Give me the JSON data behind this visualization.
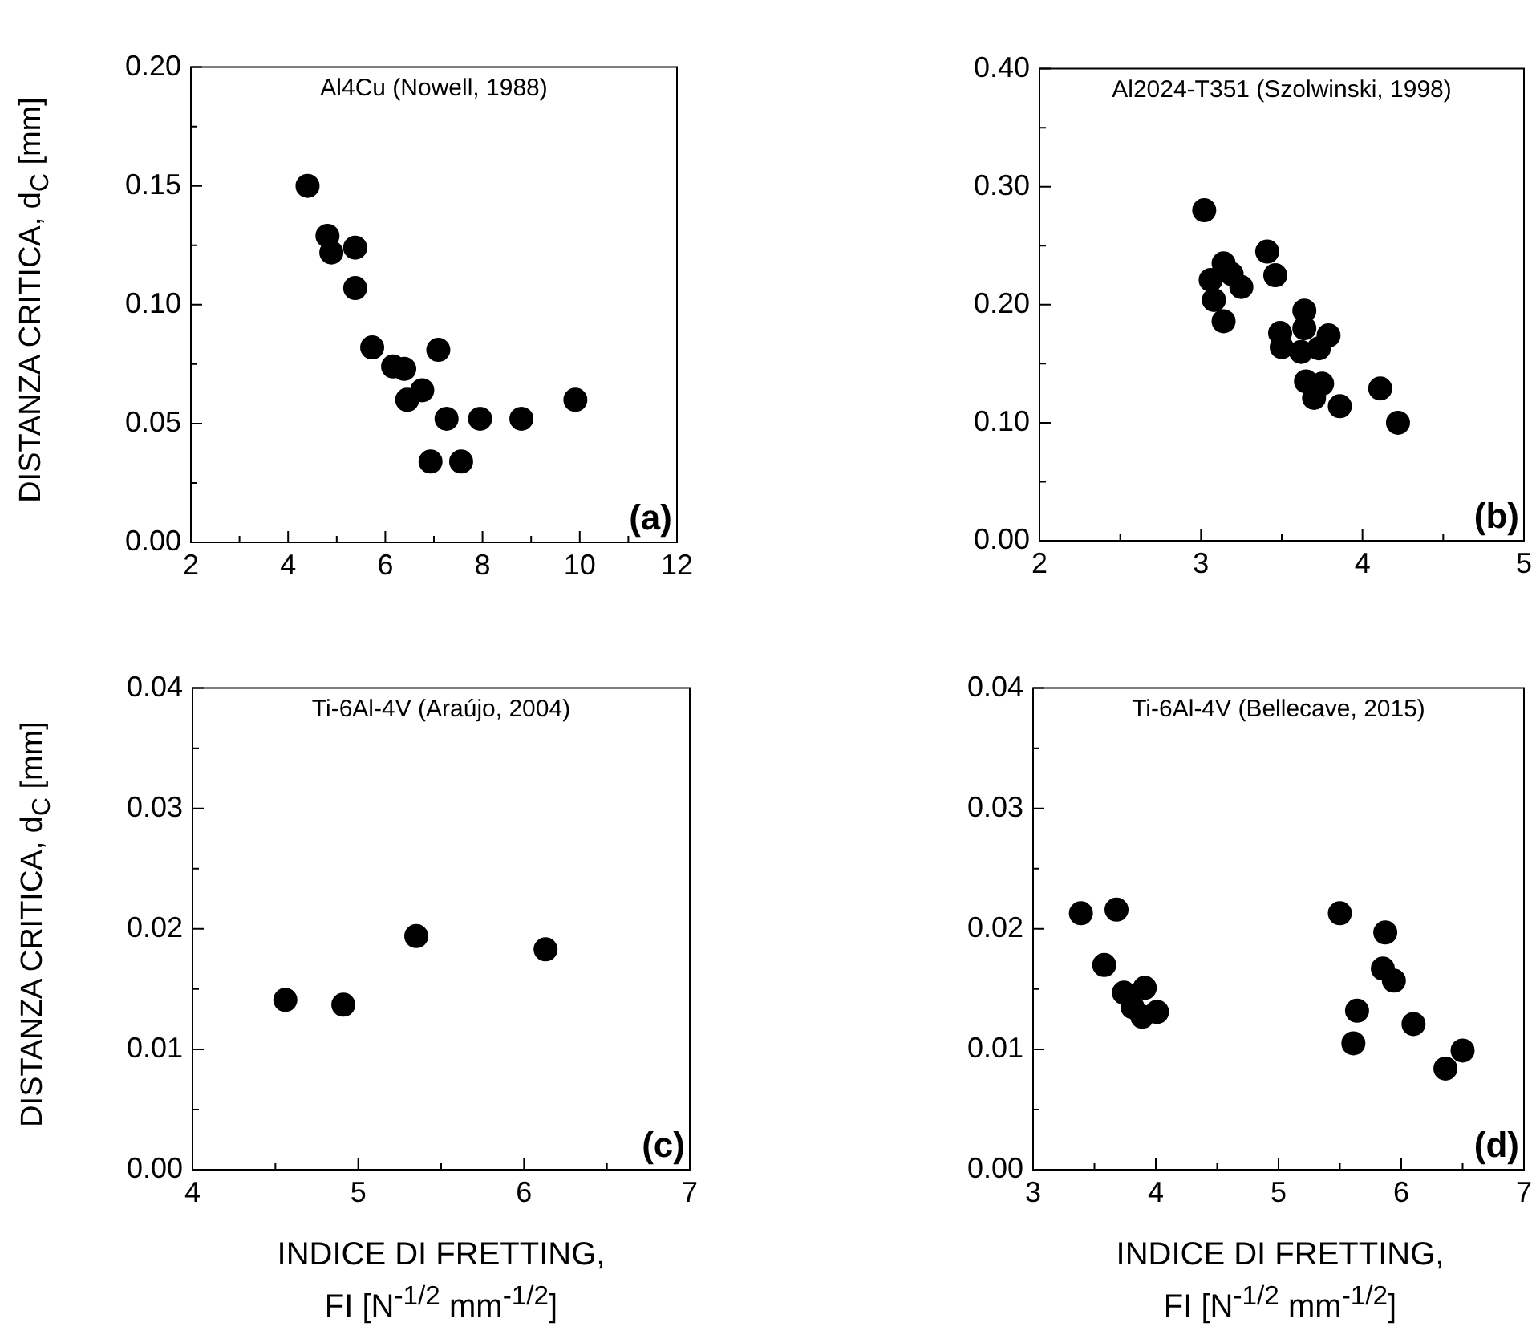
{
  "chart_data": [
    {
      "type": "scatter",
      "title": "Al4Cu (Nowell, 1988)",
      "ylabel": "DISTANZA CRITICA, d$_{C}$ [mm]",
      "annotations": [
        "(a)"
      ],
      "marker": "circle",
      "x": [
        4.4,
        4.81,
        4.89,
        5.38,
        5.38,
        5.73,
        5.94,
        5.99,
        6.16,
        6.39,
        6.45,
        6.76,
        7.09,
        6.93,
        7.26,
        7.56,
        7.95,
        8.8,
        9.91
      ],
      "values": [
        0.15,
        0.129,
        0.122,
        0.124,
        0.107,
        0.082,
        null,
        null,
        0.074,
        0.073,
        0.06,
        0.064,
        0.081,
        0.034,
        0.052,
        0.034,
        0.052,
        0.052,
        0.06
      ],
      "color": "#000000",
      "xlim": [
        2,
        12
      ],
      "ylim": [
        0,
        0.2
      ],
      "xticks": [
        2,
        {
          "value": 3,
          "label": null
        },
        4,
        {
          "value": 5,
          "label": null
        },
        6,
        {
          "value": 7,
          "label": null
        },
        8,
        {
          "value": 9,
          "label": null
        },
        10,
        {
          "value": 11,
          "label": null
        },
        12
      ],
      "yticks": [
        {
          "value": 0,
          "label": "0.00"
        },
        {
          "value": 0.025,
          "label": null
        },
        0.05,
        {
          "value": 0.075,
          "label": null
        },
        {
          "value": 0.1,
          "label": "0.10"
        },
        {
          "value": 0.125,
          "label": null
        },
        0.15,
        {
          "value": 0.175,
          "label": null
        },
        {
          "value": 0.2,
          "label": "0.20"
        }
      ]
    },
    {
      "type": "scatter",
      "title": "Al2024-T351 (Szolwinski, 1998)",
      "annotations": [
        "(b)"
      ],
      "marker": "circle",
      "x": [
        3.02,
        3.06,
        3.08,
        3.14,
        3.14,
        3.19,
        3.25,
        3.37,
        3.41,
        3.46,
        3.49,
        3.5,
        3.64,
        3.64,
        3.62,
        3.73,
        3.79,
        3.65,
        3.7,
        3.75,
        3.86,
        4.11,
        4.21,
        4.22
      ],
      "values": [
        0.28,
        0.221,
        0.204,
        0.186,
        0.235,
        0.226,
        0.215,
        null,
        0.245,
        0.225,
        0.176,
        0.164,
        0.195,
        0.18,
        0.16,
        0.163,
        0.174,
        0.135,
        0.121,
        0.133,
        0.114,
        0.129,
        null,
        0.1
      ],
      "color": "#000000",
      "xlim": [
        2,
        5
      ],
      "ylim": [
        0,
        0.4
      ],
      "xticks": [
        2,
        {
          "value": 2.5,
          "label": null
        },
        3,
        {
          "value": 3.5,
          "label": null
        },
        4,
        {
          "value": 4.5,
          "label": null
        },
        5
      ],
      "yticks": [
        {
          "value": 0,
          "label": "0.00"
        },
        {
          "value": 0.05,
          "label": null
        },
        {
          "value": 0.1,
          "label": "0.10"
        },
        {
          "value": 0.15,
          "label": null
        },
        {
          "value": 0.2,
          "label": "0.20"
        },
        {
          "value": 0.25,
          "label": null
        },
        {
          "value": 0.3,
          "label": "0.30"
        },
        {
          "value": 0.35,
          "label": null
        },
        {
          "value": 0.4,
          "label": "0.40"
        }
      ]
    },
    {
      "type": "scatter",
      "title": "Ti-6Al-4V (Araújo, 2004)",
      "ylabel": "DISTANZA CRITICA, d$_{C}$ [mm]",
      "xlabel": "INDICE DI FRETTING,\nFI [N$^{-1/2}$ mm$^{-1/2}$]",
      "annotations": [
        "(c)"
      ],
      "marker": "circle",
      "x": [
        4.56,
        4.91,
        5.35,
        6.13
      ],
      "values": [
        0.0141,
        0.0137,
        0.0194,
        0.0183
      ],
      "color": "#000000",
      "xlim": [
        4,
        7
      ],
      "ylim": [
        0,
        0.04
      ],
      "xticks": [
        4,
        {
          "value": 4.5,
          "label": null
        },
        5,
        {
          "value": 5.5,
          "label": null
        },
        6,
        {
          "value": 6.5,
          "label": null
        },
        7
      ],
      "yticks": [
        {
          "value": 0,
          "label": "0.00"
        },
        {
          "value": 0.005,
          "label": null
        },
        0.01,
        {
          "value": 0.015,
          "label": null
        },
        0.02,
        {
          "value": 0.025,
          "label": null
        },
        0.03,
        {
          "value": 0.035,
          "label": null
        },
        0.04
      ]
    },
    {
      "type": "scatter",
      "title": "Ti-6Al-4V (Bellecave, 2015)",
      "xlabel": "INDICE DI FRETTING,\nFI [N$^{-1/2}$ mm$^{-1/2}$]",
      "annotations": [
        "(d)"
      ],
      "marker": "circle",
      "x": [
        3.39,
        3.68,
        3.58,
        3.74,
        3.81,
        3.91,
        3.89,
        4.01,
        5.5,
        5.87,
        5.85,
        5.94,
        5.64,
        5.61,
        6.1,
        6.36,
        6.5
      ],
      "values": [
        0.0213,
        0.0216,
        0.017,
        0.0147,
        0.0135,
        0.0151,
        0.0127,
        0.0131,
        0.0213,
        0.0197,
        0.0167,
        0.0157,
        0.0132,
        0.0105,
        0.0121,
        0.0084,
        0.0099
      ],
      "color": "#000000",
      "xlim": [
        3,
        7
      ],
      "ylim": [
        0,
        0.04
      ],
      "xticks": [
        3,
        {
          "value": 3.5,
          "label": null
        },
        4,
        {
          "value": 4.5,
          "label": null
        },
        5,
        {
          "value": 5.5,
          "label": null
        },
        6,
        {
          "value": 6.5,
          "label": null
        },
        7
      ],
      "yticks": [
        {
          "value": 0,
          "label": "0.00"
        },
        {
          "value": 0.005,
          "label": null
        },
        0.01,
        {
          "value": 0.015,
          "label": null
        },
        0.02,
        {
          "value": 0.025,
          "label": null
        },
        0.03,
        {
          "value": 0.035,
          "label": null
        },
        0.04
      ]
    }
  ]
}
